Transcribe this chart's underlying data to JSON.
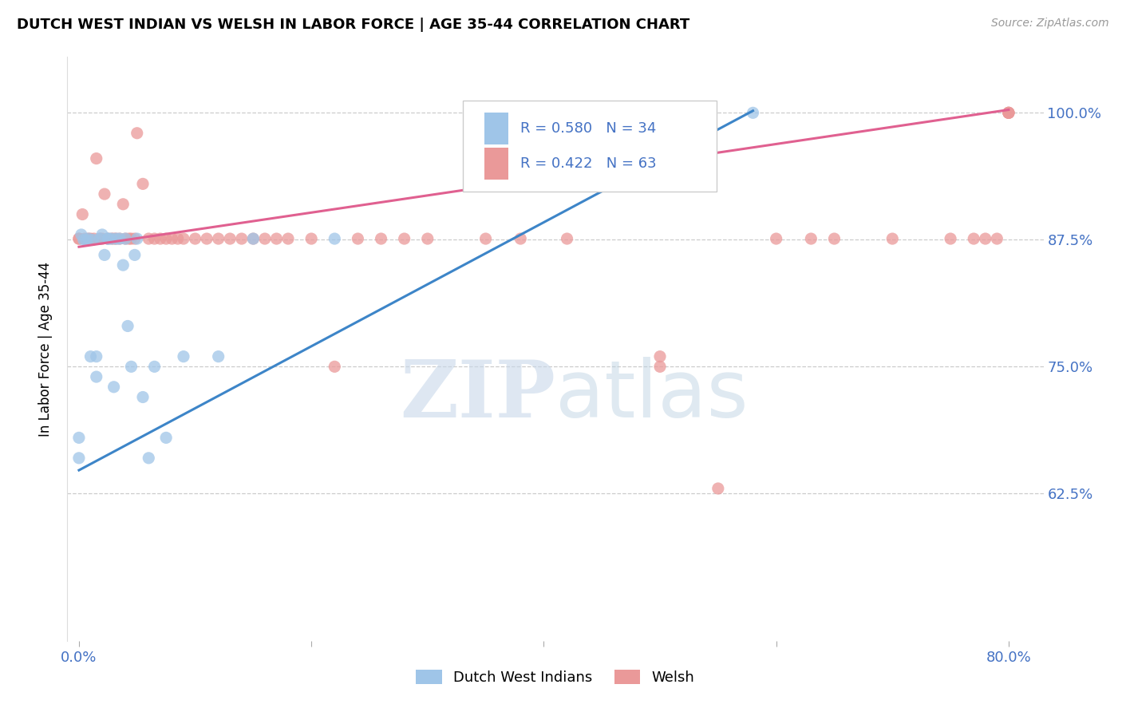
{
  "title": "DUTCH WEST INDIAN VS WELSH IN LABOR FORCE | AGE 35-44 CORRELATION CHART",
  "source_text": "Source: ZipAtlas.com",
  "ylabel": "In Labor Force | Age 35-44",
  "xmin": -0.01,
  "xmax": 0.83,
  "ymin": 0.48,
  "ymax": 1.055,
  "ytick_labels": [
    "62.5%",
    "75.0%",
    "87.5%",
    "100.0%"
  ],
  "ytick_values": [
    0.625,
    0.75,
    0.875,
    1.0
  ],
  "xtick_values": [
    0.0,
    0.2,
    0.4,
    0.6,
    0.8
  ],
  "xtick_labels": [
    "0.0%",
    "",
    "",
    "",
    "80.0%"
  ],
  "legend_blue_label": "Dutch West Indians",
  "legend_pink_label": "Welsh",
  "blue_R": "0.580",
  "blue_N": "34",
  "pink_R": "0.422",
  "pink_N": "63",
  "blue_color": "#9fc5e8",
  "pink_color": "#ea9999",
  "blue_line_color": "#3d85c8",
  "pink_line_color": "#e06090",
  "blue_x": [
    0.0,
    0.0,
    0.002,
    0.004,
    0.006,
    0.008,
    0.01,
    0.012,
    0.015,
    0.015,
    0.018,
    0.02,
    0.022,
    0.025,
    0.025,
    0.028,
    0.03,
    0.032,
    0.035,
    0.038,
    0.04,
    0.042,
    0.045,
    0.048,
    0.05,
    0.055,
    0.06,
    0.065,
    0.075,
    0.09,
    0.12,
    0.15,
    0.22,
    0.58
  ],
  "blue_y": [
    0.68,
    0.66,
    0.88,
    0.875,
    0.875,
    0.876,
    0.76,
    0.875,
    0.74,
    0.76,
    0.876,
    0.88,
    0.86,
    0.876,
    0.876,
    0.876,
    0.73,
    0.876,
    0.876,
    0.85,
    0.876,
    0.79,
    0.75,
    0.86,
    0.876,
    0.72,
    0.66,
    0.75,
    0.68,
    0.76,
    0.76,
    0.876,
    0.876,
    1.0
  ],
  "pink_x": [
    0.0,
    0.0,
    0.003,
    0.005,
    0.008,
    0.01,
    0.013,
    0.015,
    0.018,
    0.02,
    0.022,
    0.025,
    0.028,
    0.03,
    0.032,
    0.035,
    0.038,
    0.04,
    0.043,
    0.045,
    0.048,
    0.05,
    0.055,
    0.06,
    0.065,
    0.07,
    0.075,
    0.08,
    0.085,
    0.09,
    0.1,
    0.11,
    0.12,
    0.13,
    0.14,
    0.15,
    0.16,
    0.17,
    0.18,
    0.2,
    0.22,
    0.24,
    0.26,
    0.28,
    0.3,
    0.35,
    0.38,
    0.42,
    0.5,
    0.5,
    0.55,
    0.6,
    0.63,
    0.65,
    0.7,
    0.75,
    0.77,
    0.78,
    0.79,
    0.8,
    0.8,
    0.8,
    0.8
  ],
  "pink_y": [
    0.876,
    0.876,
    0.9,
    0.876,
    0.876,
    0.876,
    0.876,
    0.955,
    0.876,
    0.876,
    0.92,
    0.876,
    0.876,
    0.876,
    0.876,
    0.876,
    0.91,
    0.876,
    0.876,
    0.876,
    0.876,
    0.98,
    0.93,
    0.876,
    0.876,
    0.876,
    0.876,
    0.876,
    0.876,
    0.876,
    0.876,
    0.876,
    0.876,
    0.876,
    0.876,
    0.876,
    0.876,
    0.876,
    0.876,
    0.876,
    0.75,
    0.876,
    0.876,
    0.876,
    0.876,
    0.876,
    0.876,
    0.876,
    0.75,
    0.76,
    0.63,
    0.876,
    0.876,
    0.876,
    0.876,
    0.876,
    0.876,
    0.876,
    0.876,
    1.0,
    1.0,
    1.0,
    1.0
  ]
}
